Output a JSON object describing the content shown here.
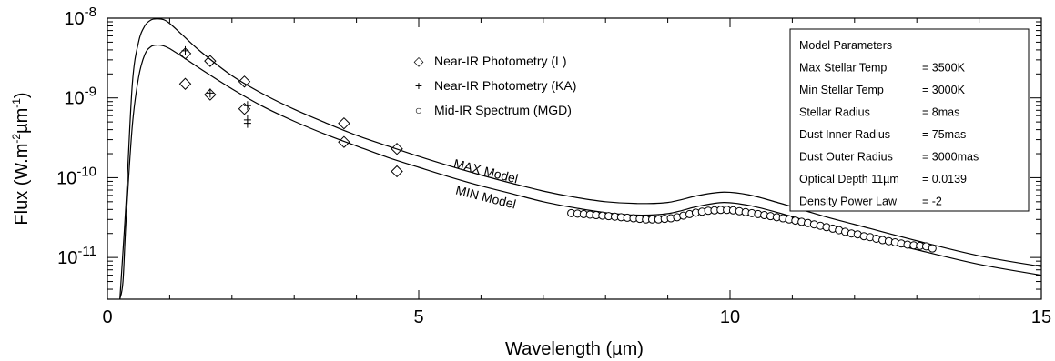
{
  "chart_data": {
    "type": "line",
    "x_axis": {
      "label": "Wavelength (µm)",
      "range": [
        0,
        15
      ],
      "ticks": [
        "0",
        "5",
        "10",
        "15"
      ],
      "tick_values": [
        0,
        5,
        10,
        15
      ]
    },
    "y_axis": {
      "label_parts": [
        "Flux (W.m",
        "-2",
        "µm",
        "-1",
        ")"
      ],
      "scale": "log",
      "range": [
        3e-12,
        1e-08
      ],
      "ticks": [
        {
          "value": 1e-08,
          "base": "10",
          "exp": "-8"
        },
        {
          "value": 1e-09,
          "base": "10",
          "exp": "-9"
        },
        {
          "value": 1e-10,
          "base": "10",
          "exp": "-10"
        },
        {
          "value": 1e-11,
          "base": "10",
          "exp": "-11"
        }
      ]
    },
    "grid": false,
    "series": [
      {
        "name": "MAX Model",
        "kind": "line",
        "points": [
          [
            0.2,
            3e-12
          ],
          [
            0.3,
            5e-11
          ],
          [
            0.4,
            1.5e-09
          ],
          [
            0.5,
            5e-09
          ],
          [
            0.6,
            8e-09
          ],
          [
            0.7,
            9.5e-09
          ],
          [
            0.8,
            9.8e-09
          ],
          [
            0.9,
            9.6e-09
          ],
          [
            1.0,
            8.6e-09
          ],
          [
            1.2,
            6.2e-09
          ],
          [
            1.5,
            3.8e-09
          ],
          [
            2.0,
            1.9e-09
          ],
          [
            2.5,
            1.12e-09
          ],
          [
            3.0,
            7.2e-10
          ],
          [
            3.5,
            4.9e-10
          ],
          [
            4.0,
            3.4e-10
          ],
          [
            4.5,
            2.5e-10
          ],
          [
            5.0,
            1.85e-10
          ],
          [
            5.5,
            1.4e-10
          ],
          [
            6.0,
            1.08e-10
          ],
          [
            6.5,
            8.5e-11
          ],
          [
            7.0,
            6.8e-11
          ],
          [
            7.5,
            5.7e-11
          ],
          [
            8.0,
            5e-11
          ],
          [
            8.5,
            4.75e-11
          ],
          [
            9.0,
            4.9e-11
          ],
          [
            9.5,
            6e-11
          ],
          [
            9.9,
            6.6e-11
          ],
          [
            10.3,
            6.1e-11
          ],
          [
            10.8,
            4.8e-11
          ],
          [
            11.5,
            3.3e-11
          ],
          [
            12.0,
            2.6e-11
          ],
          [
            13.0,
            1.62e-11
          ],
          [
            14.0,
            1.05e-11
          ],
          [
            15.0,
            7.7e-12
          ]
        ]
      },
      {
        "name": "MIN Model",
        "kind": "line",
        "points": [
          [
            0.2,
            3e-12
          ],
          [
            0.25,
            5e-12
          ],
          [
            0.3,
            3e-11
          ],
          [
            0.4,
            4.5e-10
          ],
          [
            0.5,
            1.8e-09
          ],
          [
            0.6,
            3.5e-09
          ],
          [
            0.7,
            4.4e-09
          ],
          [
            0.8,
            4.6e-09
          ],
          [
            0.9,
            4.5e-09
          ],
          [
            1.0,
            4.15e-09
          ],
          [
            1.2,
            3.3e-09
          ],
          [
            1.5,
            2.3e-09
          ],
          [
            2.0,
            1.3e-09
          ],
          [
            2.5,
            7.8e-10
          ],
          [
            3.0,
            5.1e-10
          ],
          [
            3.5,
            3.5e-10
          ],
          [
            4.0,
            2.5e-10
          ],
          [
            4.5,
            1.8e-10
          ],
          [
            5.0,
            1.35e-10
          ],
          [
            5.5,
            1.02e-10
          ],
          [
            6.0,
            7.9e-11
          ],
          [
            6.5,
            6.3e-11
          ],
          [
            7.0,
            5e-11
          ],
          [
            7.5,
            4.2e-11
          ],
          [
            8.0,
            3.65e-11
          ],
          [
            8.5,
            3.4e-11
          ],
          [
            9.0,
            3.55e-11
          ],
          [
            9.5,
            4.4e-11
          ],
          [
            9.9,
            4.9e-11
          ],
          [
            10.3,
            4.5e-11
          ],
          [
            10.8,
            3.6e-11
          ],
          [
            11.5,
            2.5e-11
          ],
          [
            12.0,
            1.95e-11
          ],
          [
            13.0,
            1.25e-11
          ],
          [
            14.0,
            8.2e-12
          ],
          [
            15.0,
            6e-12
          ]
        ]
      },
      {
        "name": "Near-IR Photometry (L)",
        "kind": "scatter",
        "marker": "diamond",
        "points": [
          [
            1.25,
            3.6e-09
          ],
          [
            1.65,
            2.9e-09
          ],
          [
            2.2,
            1.6e-09
          ],
          [
            1.25,
            1.5e-09
          ],
          [
            1.65,
            1.1e-09
          ],
          [
            2.2,
            7.3e-10
          ],
          [
            3.8,
            4.8e-10
          ],
          [
            3.8,
            2.8e-10
          ],
          [
            4.65,
            2.3e-10
          ],
          [
            4.65,
            1.2e-10
          ]
        ]
      },
      {
        "name": "Near-IR Photometry (KA)",
        "kind": "scatter",
        "marker": "plus",
        "points": [
          [
            1.25,
            3.9e-09
          ],
          [
            1.65,
            1.15e-09
          ],
          [
            2.25,
            8e-10
          ],
          [
            2.25,
            5.3e-10
          ],
          [
            2.25,
            4.8e-10
          ]
        ]
      },
      {
        "name": "Mid-IR Spectrum (MGD)",
        "kind": "scatter",
        "marker": "circle",
        "points": [
          [
            7.45,
            3.6e-11
          ],
          [
            7.55,
            3.55e-11
          ],
          [
            7.65,
            3.5e-11
          ],
          [
            7.75,
            3.45e-11
          ],
          [
            7.85,
            3.4e-11
          ],
          [
            7.95,
            3.35e-11
          ],
          [
            8.05,
            3.3e-11
          ],
          [
            8.15,
            3.25e-11
          ],
          [
            8.25,
            3.2e-11
          ],
          [
            8.35,
            3.15e-11
          ],
          [
            8.45,
            3.1e-11
          ],
          [
            8.55,
            3.05e-11
          ],
          [
            8.65,
            3e-11
          ],
          [
            8.75,
            3e-11
          ],
          [
            8.85,
            3e-11
          ],
          [
            8.95,
            3.05e-11
          ],
          [
            9.05,
            3.1e-11
          ],
          [
            9.15,
            3.2e-11
          ],
          [
            9.25,
            3.35e-11
          ],
          [
            9.35,
            3.5e-11
          ],
          [
            9.45,
            3.65e-11
          ],
          [
            9.55,
            3.75e-11
          ],
          [
            9.65,
            3.85e-11
          ],
          [
            9.75,
            3.9e-11
          ],
          [
            9.85,
            3.95e-11
          ],
          [
            9.95,
            3.95e-11
          ],
          [
            10.05,
            3.9e-11
          ],
          [
            10.15,
            3.8e-11
          ],
          [
            10.25,
            3.7e-11
          ],
          [
            10.35,
            3.6e-11
          ],
          [
            10.45,
            3.5e-11
          ],
          [
            10.55,
            3.4e-11
          ],
          [
            10.65,
            3.3e-11
          ],
          [
            10.75,
            3.2e-11
          ],
          [
            10.85,
            3.1e-11
          ],
          [
            10.95,
            3e-11
          ],
          [
            11.05,
            2.9e-11
          ],
          [
            11.15,
            2.8e-11
          ],
          [
            11.25,
            2.7e-11
          ],
          [
            11.35,
            2.6e-11
          ],
          [
            11.45,
            2.5e-11
          ],
          [
            11.55,
            2.4e-11
          ],
          [
            11.65,
            2.3e-11
          ],
          [
            11.75,
            2.2e-11
          ],
          [
            11.85,
            2.1e-11
          ],
          [
            11.95,
            2e-11
          ],
          [
            12.05,
            1.95e-11
          ],
          [
            12.15,
            1.85e-11
          ],
          [
            12.25,
            1.8e-11
          ],
          [
            12.35,
            1.72e-11
          ],
          [
            12.45,
            1.65e-11
          ],
          [
            12.55,
            1.6e-11
          ],
          [
            12.65,
            1.55e-11
          ],
          [
            12.75,
            1.5e-11
          ],
          [
            12.85,
            1.45e-11
          ],
          [
            12.95,
            1.42e-11
          ],
          [
            13.05,
            1.4e-11
          ],
          [
            13.15,
            1.38e-11
          ],
          [
            13.25,
            1.3e-11
          ]
        ]
      }
    ],
    "legend": {
      "placement": "top-center",
      "entries": [
        {
          "symbol": "◇",
          "label": "Near-IR Photometry (L)"
        },
        {
          "symbol": "+",
          "label": "Near-IR Photometry (KA)"
        },
        {
          "symbol": "○",
          "label": "Mid-IR Spectrum (MGD)"
        }
      ]
    },
    "annotations": [
      {
        "text": "MAX Model",
        "x": 6.5,
        "y": 1.25e-10
      },
      {
        "text": "MIN Model",
        "x": 6.5,
        "y": 5.6e-11
      }
    ],
    "parameter_box": {
      "placement": "top-right",
      "title": "Model Parameters",
      "rows": [
        {
          "name": "Max Stellar Temp",
          "value": "= 3500K"
        },
        {
          "name": "Min Stellar Temp",
          "value": "= 3000K"
        },
        {
          "name": "Stellar Radius",
          "value": "= 8mas"
        },
        {
          "name": "Dust Inner Radius",
          "value": "= 75mas"
        },
        {
          "name": "Dust Outer Radius",
          "value": "= 3000mas"
        },
        {
          "name": "Optical Depth 11µm",
          "value": "= 0.0139"
        },
        {
          "name": "Density Power Law",
          "value": "= -2"
        }
      ]
    }
  }
}
